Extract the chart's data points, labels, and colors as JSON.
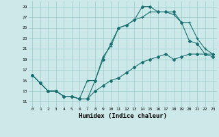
{
  "title": "",
  "xlabel": "Humidex (Indice chaleur)",
  "bg_color": "#cce8e8",
  "grid_color": "#99cccc",
  "line_color": "#1a7070",
  "xlim": [
    -0.5,
    23.5
  ],
  "ylim": [
    10.0,
    30.0
  ],
  "xticks": [
    0,
    1,
    2,
    3,
    4,
    5,
    6,
    7,
    8,
    9,
    10,
    11,
    12,
    13,
    14,
    15,
    16,
    17,
    18,
    19,
    20,
    21,
    22,
    23
  ],
  "yticks": [
    11,
    13,
    15,
    17,
    19,
    21,
    23,
    25,
    27,
    29
  ],
  "line1_x": [
    0,
    1,
    2,
    3,
    4,
    5,
    6,
    7,
    8,
    9,
    10,
    11,
    12,
    13,
    14,
    15,
    16,
    17,
    18,
    19,
    20,
    21,
    22,
    23
  ],
  "line1_y": [
    16,
    14.5,
    13,
    13,
    12,
    12,
    11.5,
    11.5,
    15,
    19,
    22,
    25,
    25.5,
    26.5,
    29,
    29,
    28,
    28,
    28,
    26,
    22.5,
    22,
    20,
    20
  ],
  "line2_x": [
    0,
    1,
    2,
    3,
    4,
    5,
    6,
    7,
    8,
    9,
    10,
    11,
    12,
    13,
    14,
    15,
    16,
    17,
    18,
    19,
    20,
    21,
    22,
    23
  ],
  "line2_y": [
    16,
    14.5,
    13,
    13,
    12,
    12,
    11.5,
    15,
    15,
    19.5,
    21.5,
    25,
    25.5,
    26.5,
    27,
    28,
    28,
    28,
    27.5,
    26,
    26,
    23,
    21,
    20
  ],
  "line3_x": [
    0,
    1,
    2,
    3,
    4,
    5,
    6,
    7,
    8,
    9,
    10,
    11,
    12,
    13,
    14,
    15,
    16,
    17,
    18,
    19,
    20,
    21,
    22,
    23
  ],
  "line3_y": [
    16,
    14.5,
    13,
    13,
    12,
    12,
    11.5,
    11.5,
    13,
    14,
    15,
    15.5,
    16.5,
    17.5,
    18.5,
    19,
    19.5,
    20,
    19,
    19.5,
    20,
    20,
    20,
    19.5
  ]
}
